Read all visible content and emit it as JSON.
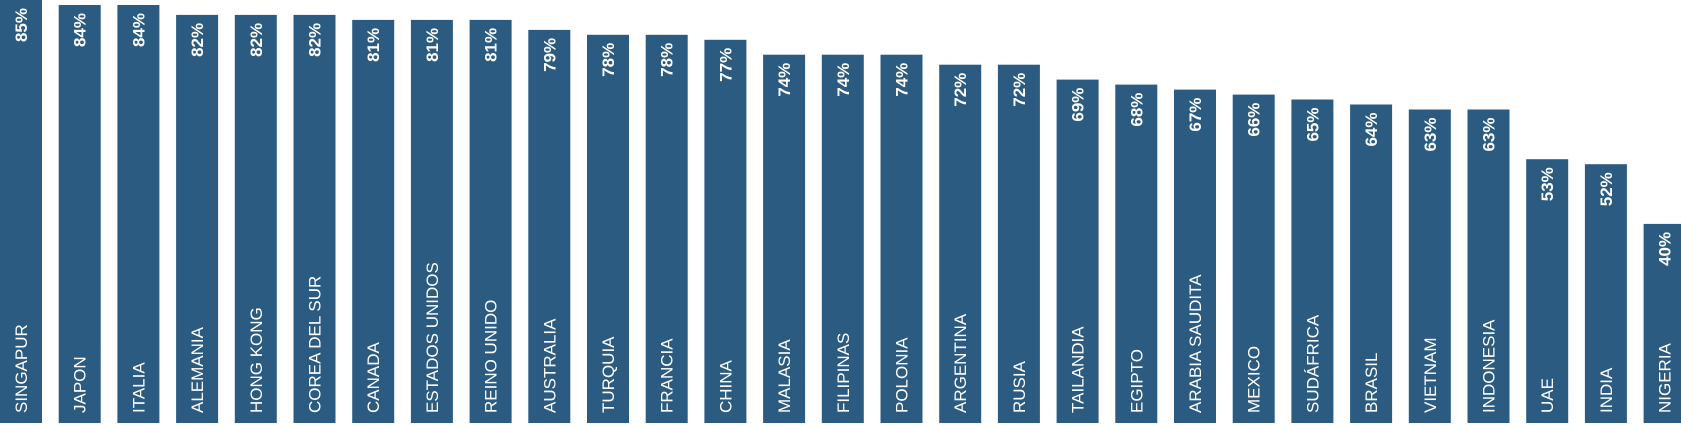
{
  "chart_data": {
    "type": "bar",
    "orientation": "vertical",
    "categories": [
      "SINGAPUR",
      "JAPON",
      "ITALIA",
      "ALEMANIA",
      "HONG KONG",
      "COREA DEL SUR",
      "CANADA",
      "ESTADOS UNIDOS",
      "REINO UNIDO",
      "AUSTRALIA",
      "TURQUIA",
      "FRANCIA",
      "CHINA",
      "MALASIA",
      "FILIPINAS",
      "POLONIA",
      "ARGENTINA",
      "RUSIA",
      "TAILANDIA",
      "EGIPTO",
      "ARABIA SAUDITA",
      "MEXICO",
      "SUDÁFRICA",
      "BRASIL",
      "VIETNAM",
      "INDONESIA",
      "UAE",
      "INDIA",
      "NIGERIA"
    ],
    "values": [
      85,
      84,
      84,
      82,
      82,
      82,
      81,
      81,
      81,
      79,
      78,
      78,
      77,
      74,
      74,
      74,
      72,
      72,
      69,
      68,
      67,
      66,
      65,
      64,
      63,
      63,
      53,
      52,
      40
    ],
    "value_labels": [
      "85%",
      "84%",
      "84%",
      "82%",
      "82%",
      "82%",
      "81%",
      "81%",
      "81%",
      "79%",
      "78%",
      "78%",
      "77%",
      "74%",
      "74%",
      "74%",
      "72%",
      "72%",
      "69%",
      "68%",
      "67%",
      "66%",
      "65%",
      "64%",
      "63%",
      "63%",
      "53%",
      "52%",
      "40%"
    ],
    "title": "",
    "xlabel": "",
    "ylabel": "",
    "ylim": [
      0,
      85
    ],
    "grid": false,
    "legend": "none",
    "bar_color": "#2b5b80",
    "label_color": "#ffffff"
  }
}
